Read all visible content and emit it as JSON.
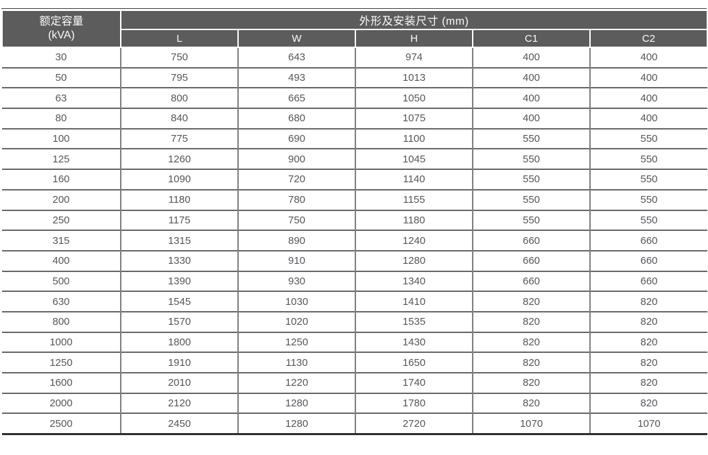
{
  "table": {
    "header": {
      "capacity_label": "额定容量",
      "capacity_unit": "(kVA)",
      "dims_group_label": "外形及安装尺寸 (mm)",
      "dim_columns": [
        "L",
        "W",
        "H",
        "C1",
        "C2"
      ]
    },
    "rows": [
      {
        "capacity": "30",
        "dims": [
          "750",
          "643",
          "974",
          "400",
          "400"
        ]
      },
      {
        "capacity": "50",
        "dims": [
          "795",
          "493",
          "1013",
          "400",
          "400"
        ]
      },
      {
        "capacity": "63",
        "dims": [
          "800",
          "665",
          "1050",
          "400",
          "400"
        ]
      },
      {
        "capacity": "80",
        "dims": [
          "840",
          "680",
          "1075",
          "400",
          "400"
        ]
      },
      {
        "capacity": "100",
        "dims": [
          "775",
          "690",
          "1100",
          "550",
          "550"
        ]
      },
      {
        "capacity": "125",
        "dims": [
          "1260",
          "900",
          "1045",
          "550",
          "550"
        ]
      },
      {
        "capacity": "160",
        "dims": [
          "1090",
          "720",
          "1140",
          "550",
          "550"
        ]
      },
      {
        "capacity": "200",
        "dims": [
          "1180",
          "780",
          "1155",
          "550",
          "550"
        ]
      },
      {
        "capacity": "250",
        "dims": [
          "1175",
          "750",
          "1180",
          "550",
          "550"
        ]
      },
      {
        "capacity": "315",
        "dims": [
          "1315",
          "890",
          "1240",
          "660",
          "660"
        ]
      },
      {
        "capacity": "400",
        "dims": [
          "1330",
          "910",
          "1280",
          "660",
          "660"
        ]
      },
      {
        "capacity": "500",
        "dims": [
          "1390",
          "930",
          "1340",
          "660",
          "660"
        ]
      },
      {
        "capacity": "630",
        "dims": [
          "1545",
          "1030",
          "1410",
          "820",
          "820"
        ]
      },
      {
        "capacity": "800",
        "dims": [
          "1570",
          "1020",
          "1535",
          "820",
          "820"
        ]
      },
      {
        "capacity": "1000",
        "dims": [
          "1800",
          "1250",
          "1430",
          "820",
          "820"
        ]
      },
      {
        "capacity": "1250",
        "dims": [
          "1910",
          "1130",
          "1650",
          "820",
          "820"
        ]
      },
      {
        "capacity": "1600",
        "dims": [
          "2010",
          "1220",
          "1740",
          "820",
          "820"
        ]
      },
      {
        "capacity": "2000",
        "dims": [
          "2120",
          "1280",
          "1780",
          "820",
          "820"
        ]
      },
      {
        "capacity": "2500",
        "dims": [
          "2450",
          "1280",
          "2720",
          "1070",
          "1070"
        ]
      }
    ]
  },
  "colors": {
    "header_bg": "#5d5c5c",
    "header_text": "#fafafa",
    "body_text": "#55565a",
    "grid_line_horizontal": "#666666",
    "grid_line_vertical": "#7e7e7e",
    "bottom_border": "#2e2e2e",
    "top_rule": "#3c3c3c"
  }
}
